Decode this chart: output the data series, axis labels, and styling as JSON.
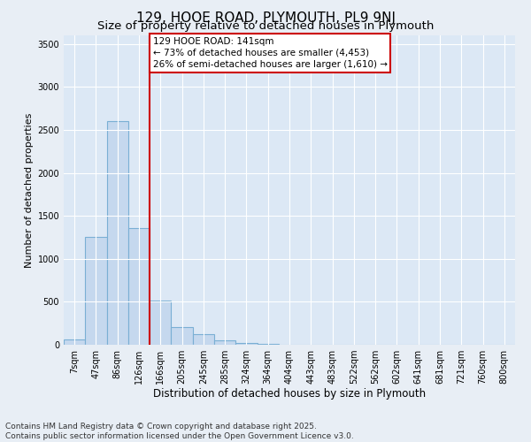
{
  "title": "129, HOOE ROAD, PLYMOUTH, PL9 9NJ",
  "subtitle": "Size of property relative to detached houses in Plymouth",
  "xlabel": "Distribution of detached houses by size in Plymouth",
  "ylabel": "Number of detached properties",
  "categories": [
    "7sqm",
    "47sqm",
    "86sqm",
    "126sqm",
    "166sqm",
    "205sqm",
    "245sqm",
    "285sqm",
    "324sqm",
    "364sqm",
    "404sqm",
    "443sqm",
    "483sqm",
    "522sqm",
    "562sqm",
    "602sqm",
    "641sqm",
    "681sqm",
    "721sqm",
    "760sqm",
    "800sqm"
  ],
  "values": [
    60,
    1250,
    2600,
    1360,
    510,
    210,
    120,
    50,
    18,
    8,
    3,
    2,
    1,
    0,
    0,
    0,
    0,
    0,
    0,
    0,
    0
  ],
  "bar_color": "#c5d8ee",
  "bar_edge_color": "#7aafd4",
  "vline_x_index": 3.5,
  "vline_color": "#cc0000",
  "annotation_line1": "129 HOOE ROAD: 141sqm",
  "annotation_line2": "← 73% of detached houses are smaller (4,453)",
  "annotation_line3": "26% of semi-detached houses are larger (1,610) →",
  "annotation_box_facecolor": "#ffffff",
  "annotation_box_edgecolor": "#cc0000",
  "ylim": [
    0,
    3600
  ],
  "yticks": [
    0,
    500,
    1000,
    1500,
    2000,
    2500,
    3000,
    3500
  ],
  "bg_color": "#e8eef5",
  "plot_bg_color": "#dce8f5",
  "grid_color": "#ffffff",
  "footer_line1": "Contains HM Land Registry data © Crown copyright and database right 2025.",
  "footer_line2": "Contains public sector information licensed under the Open Government Licence v3.0.",
  "title_fontsize": 11,
  "subtitle_fontsize": 9.5,
  "xlabel_fontsize": 8.5,
  "ylabel_fontsize": 8,
  "tick_fontsize": 7,
  "annotation_fontsize": 7.5,
  "footer_fontsize": 6.5
}
